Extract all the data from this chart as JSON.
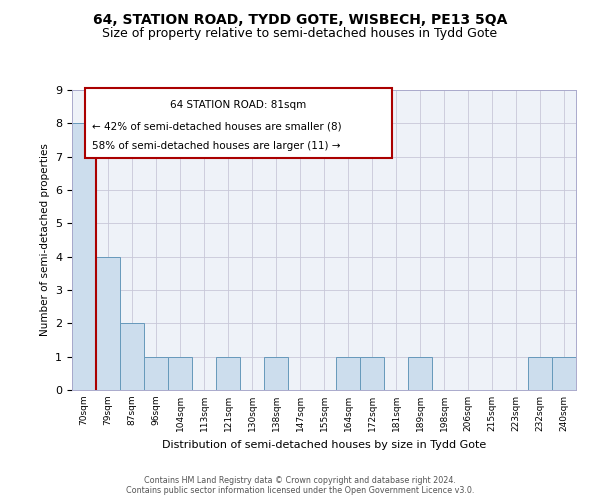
{
  "title1": "64, STATION ROAD, TYDD GOTE, WISBECH, PE13 5QA",
  "title2": "Size of property relative to semi-detached houses in Tydd Gote",
  "xlabel": "Distribution of semi-detached houses by size in Tydd Gote",
  "ylabel": "Number of semi-detached properties",
  "bins": [
    "70sqm",
    "79sqm",
    "87sqm",
    "96sqm",
    "104sqm",
    "113sqm",
    "121sqm",
    "130sqm",
    "138sqm",
    "147sqm",
    "155sqm",
    "164sqm",
    "172sqm",
    "181sqm",
    "189sqm",
    "198sqm",
    "206sqm",
    "215sqm",
    "223sqm",
    "232sqm",
    "240sqm"
  ],
  "values": [
    8,
    4,
    2,
    1,
    1,
    0,
    1,
    0,
    1,
    0,
    0,
    1,
    1,
    0,
    1,
    0,
    0,
    0,
    0,
    1,
    1
  ],
  "bar_color": "#ccdded",
  "bar_edge_color": "#6699bb",
  "subject_label": "64 STATION ROAD: 81sqm",
  "pct_smaller": "42% of semi-detached houses are smaller (8)",
  "pct_larger": "58% of semi-detached houses are larger (11)",
  "red_line_color": "#aa0000",
  "red_line_x": 0.5,
  "ylim": [
    0,
    9
  ],
  "yticks": [
    0,
    1,
    2,
    3,
    4,
    5,
    6,
    7,
    8,
    9
  ],
  "footnote1": "Contains HM Land Registry data © Crown copyright and database right 2024.",
  "footnote2": "Contains public sector information licensed under the Open Government Licence v3.0.",
  "title1_fontsize": 10,
  "title2_fontsize": 9,
  "grid_color": "#c8c8d8",
  "bg_color": "#eef2f8"
}
